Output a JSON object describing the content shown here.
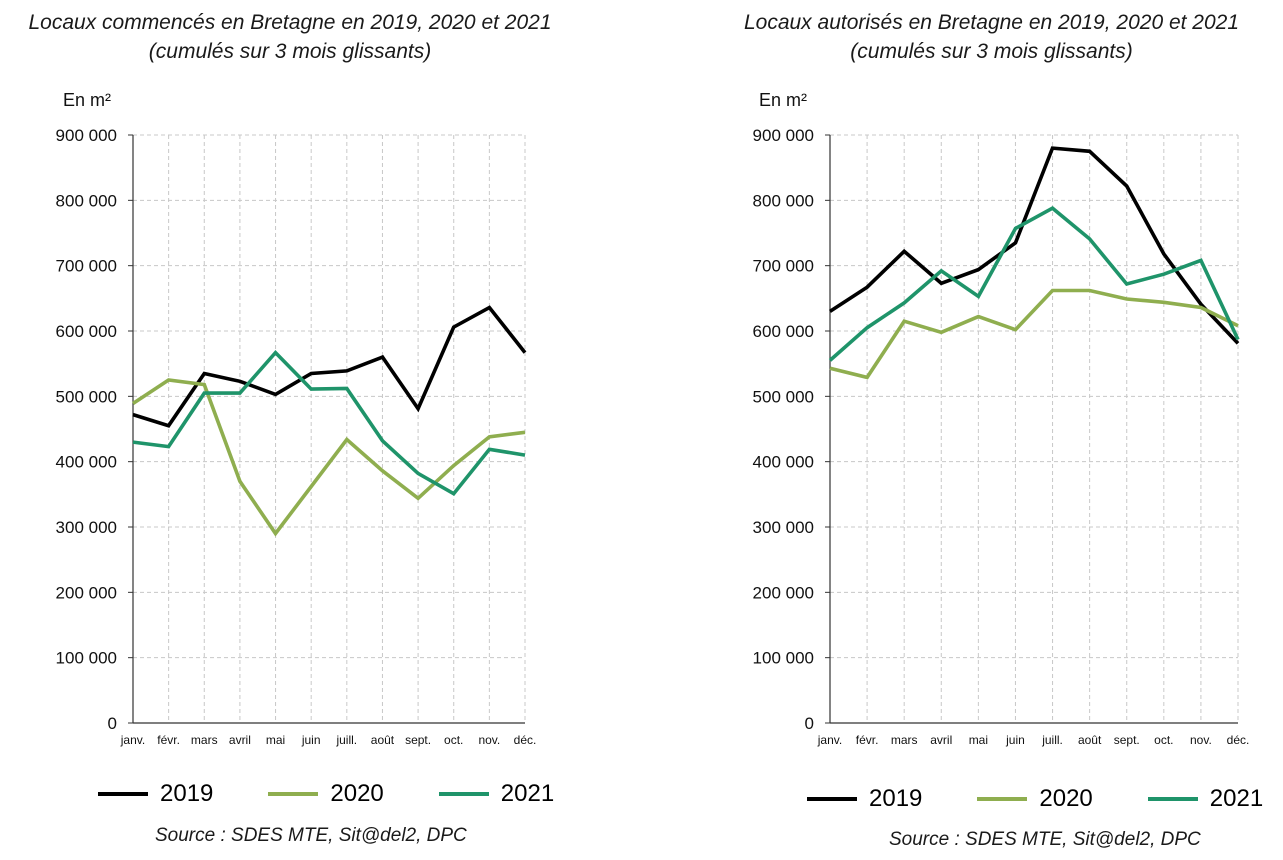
{
  "chart_data": [
    {
      "type": "line",
      "title": "Locaux commencés en Bretagne en 2019, 2020 et 2021",
      "subtitle": "(cumulés sur 3 mois glissants)",
      "ylabel": "En m²",
      "xlabel": "",
      "categories": [
        "janv.",
        "févr.",
        "mars",
        "avril",
        "mai",
        "juin",
        "juill.",
        "août",
        "sept.",
        "oct.",
        "nov.",
        "déc."
      ],
      "ylim": [
        0,
        900000
      ],
      "yticks": [
        0,
        100000,
        200000,
        300000,
        400000,
        500000,
        600000,
        700000,
        800000,
        900000
      ],
      "ytick_labels": [
        "0",
        "100 000",
        "200 000",
        "300 000",
        "400 000",
        "500 000",
        "600 000",
        "700 000",
        "800 000",
        "900 000"
      ],
      "grid": true,
      "legend_position": "bottom",
      "series": [
        {
          "name": "2019",
          "color": "#000000",
          "values": [
            472000,
            455000,
            535000,
            523000,
            503000,
            535000,
            539000,
            560000,
            481000,
            606000,
            636000,
            567000
          ]
        },
        {
          "name": "2020",
          "color": "#8fae4f",
          "values": [
            489000,
            525000,
            518000,
            370000,
            290000,
            362000,
            434000,
            386000,
            344000,
            394000,
            438000,
            445000
          ]
        },
        {
          "name": "2021",
          "color": "#1f946a",
          "values": [
            430000,
            423000,
            505000,
            505000,
            567000,
            511000,
            512000,
            432000,
            382000,
            351000,
            419000,
            410000
          ]
        }
      ],
      "source": "Source : SDES MTE, Sit@del2, DPC"
    },
    {
      "type": "line",
      "title": "Locaux autorisés en Bretagne en 2019, 2020 et 2021",
      "subtitle": "(cumulés sur 3 mois glissants)",
      "ylabel": "En m²",
      "xlabel": "",
      "categories": [
        "janv.",
        "févr.",
        "mars",
        "avril",
        "mai",
        "juin",
        "juill.",
        "août",
        "sept.",
        "oct.",
        "nov.",
        "déc."
      ],
      "ylim": [
        0,
        900000
      ],
      "yticks": [
        0,
        100000,
        200000,
        300000,
        400000,
        500000,
        600000,
        700000,
        800000,
        900000
      ],
      "ytick_labels": [
        "0",
        "100 000",
        "200 000",
        "300 000",
        "400 000",
        "500 000",
        "600 000",
        "700 000",
        "800 000",
        "900 000"
      ],
      "grid": true,
      "legend_position": "bottom",
      "series": [
        {
          "name": "2019",
          "color": "#000000",
          "values": [
            630000,
            667000,
            722000,
            673000,
            694000,
            735000,
            880000,
            875000,
            822000,
            718000,
            641000,
            581000
          ]
        },
        {
          "name": "2020",
          "color": "#8fae4f",
          "values": [
            543000,
            529000,
            615000,
            598000,
            622000,
            602000,
            662000,
            662000,
            649000,
            644000,
            636000,
            608000
          ]
        },
        {
          "name": "2021",
          "color": "#1f946a",
          "values": [
            555000,
            605000,
            643000,
            692000,
            653000,
            757000,
            788000,
            741000,
            672000,
            687000,
            708000,
            587000
          ]
        }
      ],
      "source": "Source : SDES MTE, Sit@del2, DPC"
    }
  ]
}
